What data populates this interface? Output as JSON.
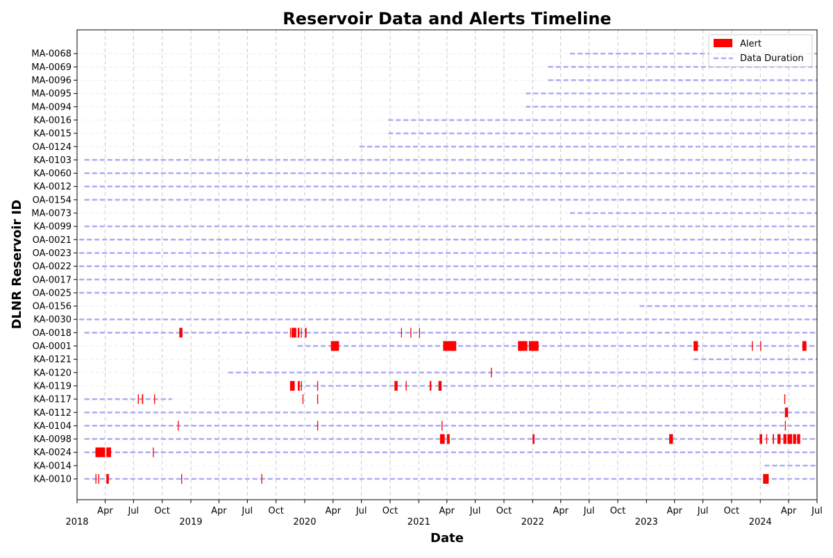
{
  "chart_data": {
    "type": "timeline",
    "title": "Reservoir Data and Alerts Timeline",
    "xlabel": "Date",
    "ylabel": "DLNR Reservoir ID",
    "xlim": [
      "2018-01-01",
      "2024-07-01"
    ],
    "grid": true,
    "legend_position": "top-right",
    "legend": [
      {
        "label": "Alert",
        "kind": "patch",
        "color": "#ff0000"
      },
      {
        "label": "Data Duration",
        "kind": "dashed-line",
        "color": "#aaaaf5"
      }
    ],
    "x_ticks": [
      {
        "date": "2018-01-01",
        "label": "2018",
        "year": true
      },
      {
        "date": "2018-04-01",
        "label": "Apr"
      },
      {
        "date": "2018-07-01",
        "label": "Jul"
      },
      {
        "date": "2018-10-01",
        "label": "Oct"
      },
      {
        "date": "2019-01-01",
        "label": "2019",
        "year": true
      },
      {
        "date": "2019-04-01",
        "label": "Apr"
      },
      {
        "date": "2019-07-01",
        "label": "Jul"
      },
      {
        "date": "2019-10-01",
        "label": "Oct"
      },
      {
        "date": "2020-01-01",
        "label": "2020",
        "year": true
      },
      {
        "date": "2020-04-01",
        "label": "Apr"
      },
      {
        "date": "2020-07-01",
        "label": "Jul"
      },
      {
        "date": "2020-10-01",
        "label": "Oct"
      },
      {
        "date": "2021-01-01",
        "label": "2021",
        "year": true
      },
      {
        "date": "2021-04-01",
        "label": "Apr"
      },
      {
        "date": "2021-07-01",
        "label": "Jul"
      },
      {
        "date": "2021-10-01",
        "label": "Oct"
      },
      {
        "date": "2022-01-01",
        "label": "2022",
        "year": true
      },
      {
        "date": "2022-04-01",
        "label": "Apr"
      },
      {
        "date": "2022-07-01",
        "label": "Jul"
      },
      {
        "date": "2022-10-01",
        "label": "Oct"
      },
      {
        "date": "2023-01-01",
        "label": "2023",
        "year": true
      },
      {
        "date": "2023-04-01",
        "label": "Apr"
      },
      {
        "date": "2023-07-01",
        "label": "Jul"
      },
      {
        "date": "2023-10-01",
        "label": "Oct"
      },
      {
        "date": "2024-01-01",
        "label": "2024",
        "year": true
      },
      {
        "date": "2024-04-01",
        "label": "Apr"
      },
      {
        "date": "2024-07-01",
        "label": "Jul"
      }
    ],
    "reservoirs": [
      {
        "id": "MA-0068",
        "data": [
          "2022-05-01",
          "2024-07-01"
        ],
        "alerts": []
      },
      {
        "id": "MA-0069",
        "data": [
          "2022-02-20",
          "2024-07-01"
        ],
        "alerts": []
      },
      {
        "id": "MA-0096",
        "data": [
          "2022-02-20",
          "2024-07-01"
        ],
        "alerts": []
      },
      {
        "id": "MA-0095",
        "data": [
          "2021-12-10",
          "2024-07-01"
        ],
        "alerts": []
      },
      {
        "id": "MA-0094",
        "data": [
          "2021-12-10",
          "2024-07-01"
        ],
        "alerts": []
      },
      {
        "id": "KA-0016",
        "data": [
          "2020-09-25",
          "2024-07-01"
        ],
        "alerts": []
      },
      {
        "id": "KA-0015",
        "data": [
          "2020-09-25",
          "2024-07-01"
        ],
        "alerts": []
      },
      {
        "id": "OA-0124",
        "data": [
          "2020-06-25",
          "2024-07-01"
        ],
        "alerts": []
      },
      {
        "id": "KA-0103",
        "data": [
          "2018-01-25",
          "2024-07-01"
        ],
        "alerts": []
      },
      {
        "id": "KA-0060",
        "data": [
          "2018-01-25",
          "2024-07-01"
        ],
        "alerts": []
      },
      {
        "id": "KA-0012",
        "data": [
          "2018-01-25",
          "2024-07-01"
        ],
        "alerts": []
      },
      {
        "id": "OA-0154",
        "data": [
          "2018-01-25",
          "2024-07-01"
        ],
        "alerts": []
      },
      {
        "id": "MA-0073",
        "data": [
          "2022-05-01",
          "2024-07-01"
        ],
        "alerts": []
      },
      {
        "id": "KA-0099",
        "data": [
          "2018-01-25",
          "2024-07-01"
        ],
        "alerts": []
      },
      {
        "id": "OA-0021",
        "data": [
          "2018-01-08",
          "2024-07-01"
        ],
        "alerts": []
      },
      {
        "id": "OA-0023",
        "data": [
          "2018-01-08",
          "2024-07-01"
        ],
        "alerts": []
      },
      {
        "id": "OA-0022",
        "data": [
          "2018-01-08",
          "2024-07-01"
        ],
        "alerts": []
      },
      {
        "id": "OA-0017",
        "data": [
          "2018-01-08",
          "2024-07-01"
        ],
        "alerts": []
      },
      {
        "id": "OA-0025",
        "data": [
          "2018-01-08",
          "2024-07-01"
        ],
        "alerts": []
      },
      {
        "id": "OA-0156",
        "data": [
          "2022-12-10",
          "2024-07-01"
        ],
        "alerts": []
      },
      {
        "id": "KA-0030",
        "data": [
          "2018-01-08",
          "2024-07-01"
        ],
        "alerts": []
      },
      {
        "id": "OA-0018",
        "data": [
          "2018-01-25",
          "2024-07-01"
        ],
        "alerts": [
          [
            "2018-11-25",
            "2018-12-05"
          ],
          [
            "2019-11-15",
            "2019-11-18"
          ],
          [
            "2019-11-20",
            "2019-12-05"
          ],
          [
            "2019-12-10",
            "2019-12-15"
          ],
          [
            "2019-12-20",
            "2019-12-22"
          ],
          [
            "2020-01-02",
            "2020-01-07"
          ],
          [
            "2020-11-05",
            "2020-11-07"
          ],
          [
            "2020-12-05",
            "2020-12-08"
          ],
          [
            "2021-01-02",
            "2021-01-04"
          ]
        ]
      },
      {
        "id": "OA-0001",
        "data": [
          "2019-12-10",
          "2024-07-01"
        ],
        "alerts": [
          [
            "2020-03-25",
            "2020-04-20"
          ],
          [
            "2021-03-20",
            "2021-05-01"
          ],
          [
            "2021-11-15",
            "2021-12-15"
          ],
          [
            "2021-12-20",
            "2022-01-20"
          ],
          [
            "2023-06-01",
            "2023-06-15"
          ],
          [
            "2023-12-05",
            "2023-12-08"
          ],
          [
            "2024-01-01",
            "2024-01-04"
          ],
          [
            "2024-05-15",
            "2024-05-28"
          ]
        ]
      },
      {
        "id": "KA-0121",
        "data": [
          "2023-06-01",
          "2024-07-01"
        ],
        "alerts": []
      },
      {
        "id": "KA-0120",
        "data": [
          "2019-05-01",
          "2024-07-01"
        ],
        "alerts": [
          [
            "2021-08-20",
            "2021-08-23"
          ]
        ]
      },
      {
        "id": "KA-0119",
        "data": [
          "2019-12-10",
          "2024-07-01"
        ],
        "alerts": [
          [
            "2019-11-15",
            "2019-11-30"
          ],
          [
            "2019-12-10",
            "2019-12-16"
          ],
          [
            "2019-12-20",
            "2019-12-23"
          ],
          [
            "2020-02-10",
            "2020-02-13"
          ],
          [
            "2020-10-15",
            "2020-10-25"
          ],
          [
            "2020-11-20",
            "2020-11-23"
          ],
          [
            "2021-02-05",
            "2021-02-10"
          ],
          [
            "2021-03-05",
            "2021-03-15"
          ]
        ]
      },
      {
        "id": "KA-0117",
        "data": [
          "2018-01-25",
          "2018-11-01"
        ],
        "alerts": [
          [
            "2018-07-15",
            "2018-07-18"
          ],
          [
            "2018-07-28",
            "2018-08-01"
          ],
          [
            "2018-09-05",
            "2018-09-08"
          ],
          [
            "2019-12-25",
            "2019-12-28"
          ],
          [
            "2020-02-10",
            "2020-02-13"
          ],
          [
            "2024-03-18",
            "2024-03-21"
          ]
        ]
      },
      {
        "id": "KA-0112",
        "data": [
          "2018-01-25",
          "2024-07-01"
        ],
        "alerts": [
          [
            "2024-03-20",
            "2024-03-30"
          ]
        ]
      },
      {
        "id": "KA-0104",
        "data": [
          "2018-01-25",
          "2024-07-01"
        ],
        "alerts": [
          [
            "2018-11-20",
            "2018-11-23"
          ],
          [
            "2020-02-10",
            "2020-02-13"
          ],
          [
            "2021-03-15",
            "2021-03-18"
          ],
          [
            "2024-03-20",
            "2024-03-23"
          ]
        ]
      },
      {
        "id": "KA-0098",
        "data": [
          "2018-01-25",
          "2024-07-01"
        ],
        "alerts": [
          [
            "2021-03-10",
            "2021-03-25"
          ],
          [
            "2021-04-01",
            "2021-04-10"
          ],
          [
            "2022-01-01",
            "2022-01-07"
          ],
          [
            "2023-03-15",
            "2023-03-27"
          ],
          [
            "2023-12-30",
            "2024-01-07"
          ],
          [
            "2024-01-20",
            "2024-01-23"
          ],
          [
            "2024-02-10",
            "2024-02-14"
          ],
          [
            "2024-02-25",
            "2024-03-06"
          ],
          [
            "2024-03-15",
            "2024-03-25"
          ],
          [
            "2024-03-28",
            "2024-04-12"
          ],
          [
            "2024-04-15",
            "2024-04-25"
          ],
          [
            "2024-04-28",
            "2024-05-08"
          ]
        ]
      },
      {
        "id": "KA-0024",
        "data": [
          "2018-01-25",
          "2024-07-01"
        ],
        "alerts": [
          [
            "2018-03-01",
            "2018-04-01"
          ],
          [
            "2018-04-05",
            "2018-04-20"
          ],
          [
            "2018-09-01",
            "2018-09-04"
          ]
        ]
      },
      {
        "id": "KA-0014",
        "data": [
          "2024-01-15",
          "2024-07-01"
        ],
        "alerts": []
      },
      {
        "id": "KA-0010",
        "data": [
          "2018-01-25",
          "2024-07-01"
        ],
        "alerts": [
          [
            "2018-03-01",
            "2018-03-04"
          ],
          [
            "2018-03-10",
            "2018-03-13"
          ],
          [
            "2018-04-05",
            "2018-04-13"
          ],
          [
            "2018-12-01",
            "2018-12-04"
          ],
          [
            "2019-08-15",
            "2019-08-18"
          ],
          [
            "2024-01-10",
            "2024-01-28"
          ]
        ]
      }
    ]
  }
}
